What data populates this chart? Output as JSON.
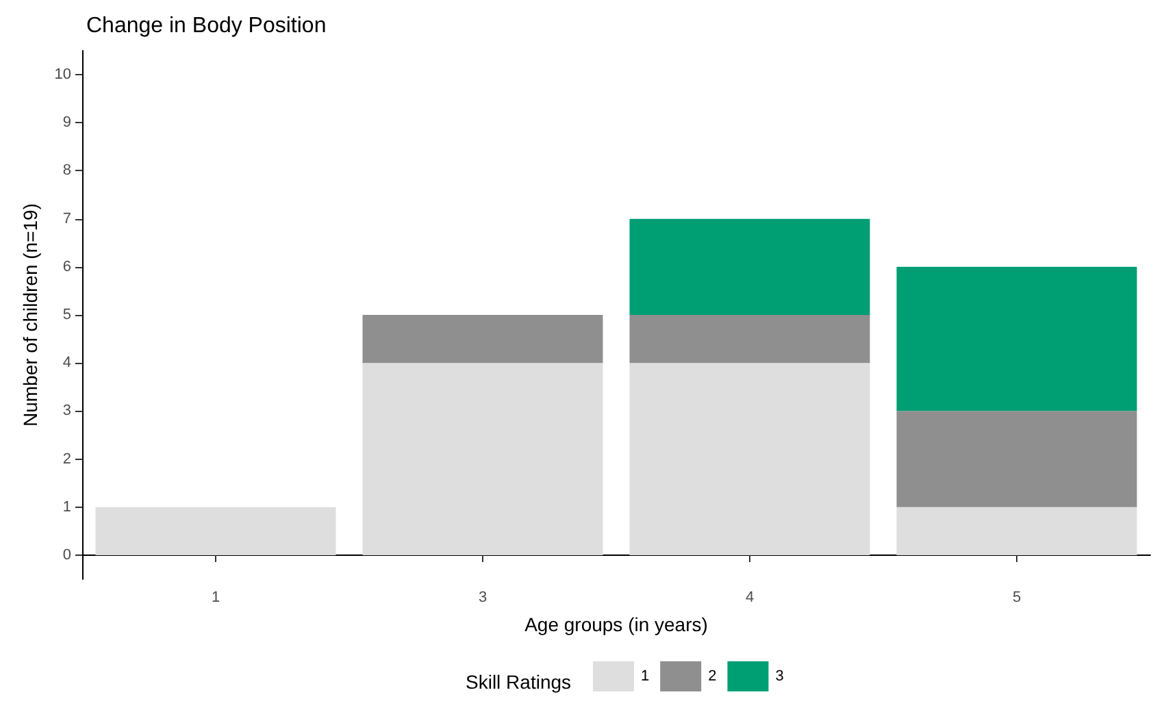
{
  "chart_data": {
    "type": "bar",
    "title": "Change in Body Position",
    "xlabel": "Age groups (in years)",
    "ylabel": "Number of children (n=19)",
    "legend_title": "Skill Ratings",
    "categories": [
      "1",
      "3",
      "4",
      "5"
    ],
    "stacked": true,
    "series": [
      {
        "name": "1",
        "color": "#dedede",
        "values": [
          1,
          4,
          4,
          1
        ]
      },
      {
        "name": "2",
        "color": "#8f8f8f",
        "values": [
          0,
          1,
          1,
          2
        ]
      },
      {
        "name": "3",
        "color": "#009e73",
        "values": [
          0,
          0,
          2,
          3
        ]
      }
    ],
    "ylim": [
      -0.5,
      10.5
    ],
    "yticks": [
      0,
      1,
      2,
      3,
      4,
      5,
      6,
      7,
      8,
      9,
      10
    ],
    "grid": false,
    "legend": "bottom"
  }
}
